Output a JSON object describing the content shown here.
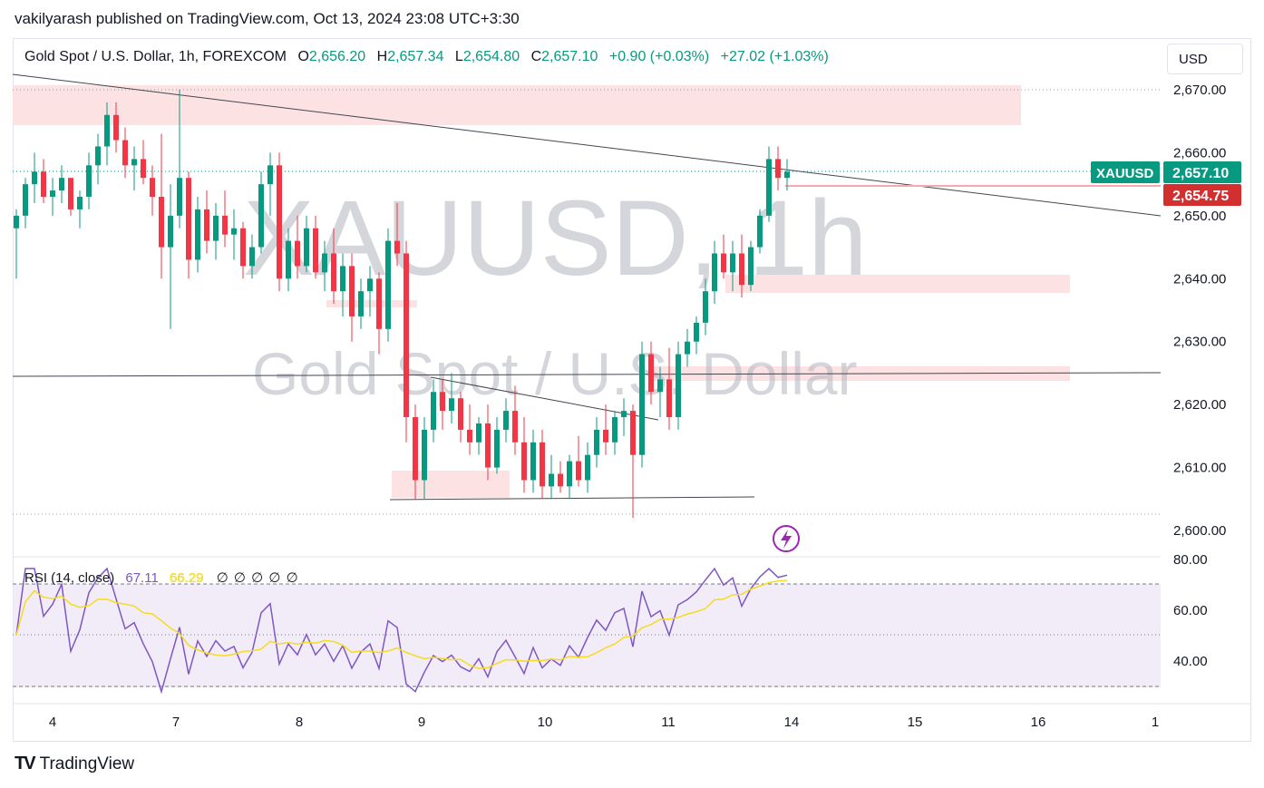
{
  "header": {
    "published_by": "vakilyarash published on TradingView.com, Oct 13, 2024 23:08 UTC+3:30"
  },
  "legend": {
    "symbol_desc": "Gold Spot / U.S. Dollar, 1h, FOREXCOM",
    "open_key": "O",
    "open": "2,656.20",
    "high_key": "H",
    "high": "2,657.34",
    "low_key": "L",
    "low": "2,654.80",
    "close_key": "C",
    "close": "2,657.10",
    "change": "+0.90 (+0.03%)",
    "change2": "+27.02 (+1.03%)"
  },
  "currency_button": "USD",
  "watermark": {
    "symbol": "XAUUSD, 1h",
    "name": "Gold Spot / U.S. Dollar"
  },
  "price_labels": {
    "symbol_tag": "XAUUSD",
    "last_price": "2,657.10",
    "line_price": "2,654.75",
    "tag_color": "#089981",
    "line_color": "#d32f2f"
  },
  "rsi": {
    "label": "RSI (14, close)",
    "value": "67.11",
    "ma_value": "66.29",
    "extra": "∅ ∅ ∅ ∅ ∅",
    "line_color": "#7e57c2",
    "ma_color": "#f5dc1e",
    "levels": [
      70,
      50,
      30
    ],
    "tick_labels": [
      "80.00",
      "60.00",
      "40.00"
    ]
  },
  "footer": {
    "brand": "TradingView",
    "logo": "TV"
  },
  "chart_data": {
    "type": "candlestick",
    "y_ticks": [
      "2,670.00",
      "2,660.00",
      "2,650.00",
      "2,640.00",
      "2,630.00",
      "2,620.00",
      "2,610.00",
      "2,600.00"
    ],
    "x_ticks": [
      "4",
      "7",
      "8",
      "9",
      "10",
      "11",
      "14",
      "15",
      "16",
      "1"
    ],
    "ylim": [
      2598,
      2672
    ],
    "up_color": "#089981",
    "down_color": "#f23645",
    "candles": [
      [
        2648,
        2651,
        2640,
        2650
      ],
      [
        2650,
        2656,
        2648,
        2655
      ],
      [
        2655,
        2660,
        2652,
        2657
      ],
      [
        2657,
        2659,
        2652,
        2653
      ],
      [
        2653,
        2656,
        2650,
        2654
      ],
      [
        2654,
        2658,
        2652,
        2656
      ],
      [
        2656,
        2656,
        2650,
        2651
      ],
      [
        2651,
        2654,
        2648,
        2653
      ],
      [
        2653,
        2660,
        2651,
        2658
      ],
      [
        2658,
        2663,
        2655,
        2661
      ],
      [
        2661,
        2668,
        2658,
        2666
      ],
      [
        2666,
        2668,
        2660,
        2662
      ],
      [
        2662,
        2664,
        2656,
        2658
      ],
      [
        2658,
        2661,
        2654,
        2659
      ],
      [
        2659,
        2662,
        2655,
        2656
      ],
      [
        2656,
        2658,
        2650,
        2653
      ],
      [
        2653,
        2663,
        2640,
        2645
      ],
      [
        2645,
        2655,
        2632,
        2650
      ],
      [
        2650,
        2670,
        2648,
        2656
      ],
      [
        2656,
        2657,
        2640,
        2643
      ],
      [
        2643,
        2653,
        2641,
        2651
      ],
      [
        2651,
        2654,
        2644,
        2646
      ],
      [
        2646,
        2652,
        2643,
        2650
      ],
      [
        2650,
        2654,
        2645,
        2647
      ],
      [
        2647,
        2651,
        2643,
        2648
      ],
      [
        2648,
        2649,
        2640,
        2642
      ],
      [
        2642,
        2647,
        2640,
        2645
      ],
      [
        2645,
        2657,
        2644,
        2655
      ],
      [
        2655,
        2660,
        2650,
        2658
      ],
      [
        2658,
        2660,
        2638,
        2640
      ],
      [
        2640,
        2648,
        2638,
        2646
      ],
      [
        2646,
        2650,
        2640,
        2642
      ],
      [
        2642,
        2650,
        2641,
        2648
      ],
      [
        2648,
        2650,
        2640,
        2641
      ],
      [
        2641,
        2646,
        2638,
        2644
      ],
      [
        2644,
        2648,
        2636,
        2638
      ],
      [
        2638,
        2644,
        2634,
        2642
      ],
      [
        2642,
        2644,
        2630,
        2634
      ],
      [
        2634,
        2640,
        2632,
        2638
      ],
      [
        2638,
        2642,
        2634,
        2640
      ],
      [
        2640,
        2641,
        2628,
        2632
      ],
      [
        2632,
        2648,
        2630,
        2646
      ],
      [
        2646,
        2652,
        2642,
        2644
      ],
      [
        2644,
        2646,
        2614,
        2618
      ],
      [
        2618,
        2620,
        2605,
        2608
      ],
      [
        2608,
        2618,
        2605,
        2616
      ],
      [
        2616,
        2624,
        2614,
        2622
      ],
      [
        2622,
        2624,
        2616,
        2619
      ],
      [
        2619,
        2625,
        2617,
        2621
      ],
      [
        2621,
        2622,
        2614,
        2616
      ],
      [
        2616,
        2620,
        2612,
        2614
      ],
      [
        2614,
        2618,
        2612,
        2617
      ],
      [
        2617,
        2620,
        2608,
        2610
      ],
      [
        2610,
        2618,
        2609,
        2616
      ],
      [
        2616,
        2621,
        2614,
        2619
      ],
      [
        2619,
        2623,
        2612,
        2614
      ],
      [
        2614,
        2618,
        2606,
        2608
      ],
      [
        2608,
        2616,
        2606,
        2614
      ],
      [
        2614,
        2616,
        2605,
        2607
      ],
      [
        2607,
        2612,
        2605,
        2609
      ],
      [
        2609,
        2611,
        2606,
        2607
      ],
      [
        2607,
        2612,
        2605,
        2611
      ],
      [
        2611,
        2615,
        2607,
        2608
      ],
      [
        2608,
        2614,
        2606,
        2612
      ],
      [
        2612,
        2618,
        2610,
        2616
      ],
      [
        2616,
        2620,
        2612,
        2614
      ],
      [
        2614,
        2619,
        2612,
        2618
      ],
      [
        2618,
        2621,
        2615,
        2619
      ],
      [
        2619,
        2620,
        2602,
        2612
      ],
      [
        2612,
        2630,
        2610,
        2628
      ],
      [
        2628,
        2630,
        2620,
        2622
      ],
      [
        2622,
        2626,
        2618,
        2624
      ],
      [
        2624,
        2629,
        2616,
        2618
      ],
      [
        2618,
        2630,
        2616,
        2628
      ],
      [
        2628,
        2632,
        2626,
        2630
      ],
      [
        2630,
        2634,
        2628,
        2633
      ],
      [
        2633,
        2640,
        2631,
        2638
      ],
      [
        2638,
        2646,
        2636,
        2644
      ],
      [
        2644,
        2647,
        2640,
        2641
      ],
      [
        2641,
        2646,
        2638,
        2644
      ],
      [
        2644,
        2647,
        2637,
        2639
      ],
      [
        2639,
        2646,
        2638,
        2645
      ],
      [
        2645,
        2651,
        2644,
        2650
      ],
      [
        2650,
        2661,
        2649,
        2659
      ],
      [
        2659,
        2661,
        2654,
        2656
      ],
      [
        2656,
        2659,
        2654,
        2657
      ]
    ]
  }
}
